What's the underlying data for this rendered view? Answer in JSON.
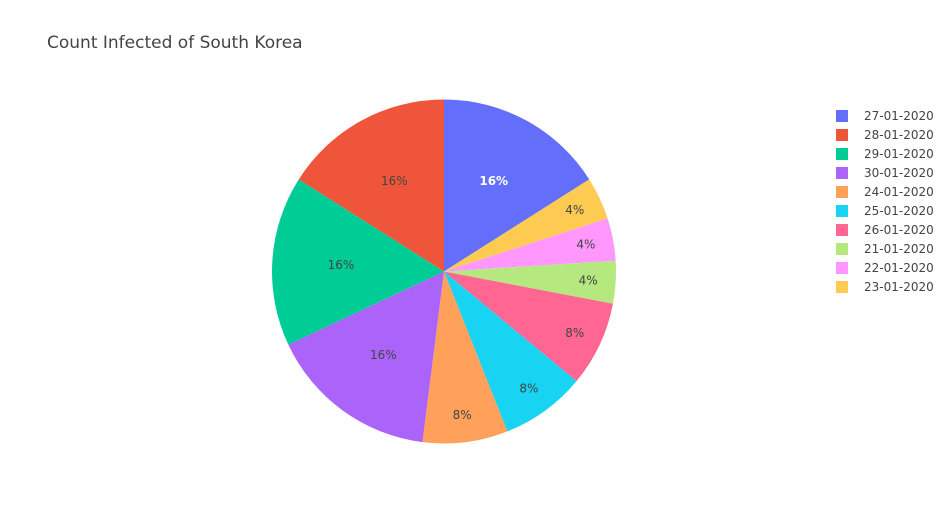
{
  "chart_data": {
    "type": "pie",
    "title": "Count Infected of South Korea",
    "legend_position": "right",
    "direction": "clockwise",
    "start_angle_deg": 0,
    "slices": [
      {
        "label": "27-01-2020",
        "value": 4,
        "percent_label": "16%",
        "color": "#636efa",
        "label_color": "#ffffff",
        "label_weight": "bold"
      },
      {
        "label": "23-01-2020",
        "value": 1,
        "percent_label": "4%",
        "color": "#fecb52",
        "label_color": "#444444",
        "label_weight": "normal"
      },
      {
        "label": "22-01-2020",
        "value": 1,
        "percent_label": "4%",
        "color": "#ff97ff",
        "label_color": "#444444",
        "label_weight": "normal"
      },
      {
        "label": "21-01-2020",
        "value": 1,
        "percent_label": "4%",
        "color": "#b6e880",
        "label_color": "#444444",
        "label_weight": "normal"
      },
      {
        "label": "26-01-2020",
        "value": 2,
        "percent_label": "8%",
        "color": "#ff6692",
        "label_color": "#444444",
        "label_weight": "normal"
      },
      {
        "label": "25-01-2020",
        "value": 2,
        "percent_label": "8%",
        "color": "#19d3f3",
        "label_color": "#444444",
        "label_weight": "normal"
      },
      {
        "label": "24-01-2020",
        "value": 2,
        "percent_label": "8%",
        "color": "#ffa15a",
        "label_color": "#444444",
        "label_weight": "normal"
      },
      {
        "label": "30-01-2020",
        "value": 4,
        "percent_label": "16%",
        "color": "#ab63fa",
        "label_color": "#444444",
        "label_weight": "normal"
      },
      {
        "label": "29-01-2020",
        "value": 4,
        "percent_label": "16%",
        "color": "#00cc96",
        "label_color": "#444444",
        "label_weight": "normal"
      },
      {
        "label": "28-01-2020",
        "value": 4,
        "percent_label": "16%",
        "color": "#ef553b",
        "label_color": "#444444",
        "label_weight": "normal"
      }
    ],
    "legend": [
      {
        "label": "27-01-2020",
        "color": "#636efa"
      },
      {
        "label": "28-01-2020",
        "color": "#ef553b"
      },
      {
        "label": "29-01-2020",
        "color": "#00cc96"
      },
      {
        "label": "30-01-2020",
        "color": "#ab63fa"
      },
      {
        "label": "24-01-2020",
        "color": "#ffa15a"
      },
      {
        "label": "25-01-2020",
        "color": "#19d3f3"
      },
      {
        "label": "26-01-2020",
        "color": "#ff6692"
      },
      {
        "label": "21-01-2020",
        "color": "#b6e880"
      },
      {
        "label": "22-01-2020",
        "color": "#ff97ff"
      },
      {
        "label": "23-01-2020",
        "color": "#fecb52"
      }
    ]
  }
}
